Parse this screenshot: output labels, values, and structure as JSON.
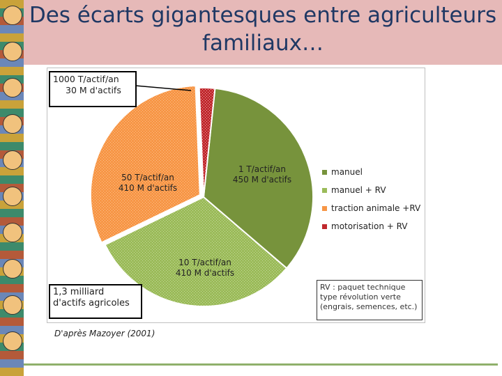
{
  "header": {
    "title": "Des écarts gigantesques entre agriculteurs familiaux…"
  },
  "chart_data": {
    "type": "pie",
    "title": "",
    "slices": [
      {
        "key": "manuel",
        "label": "manuel",
        "value": 450,
        "color": "#77933c"
      },
      {
        "key": "manuel_rv",
        "label": "manuel + RV",
        "value": 410,
        "color": "#9bbb59"
      },
      {
        "key": "traction",
        "label": "traction animale +RV",
        "value": 410,
        "color": "#f79646"
      },
      {
        "key": "motorisation",
        "label": "motorisation + RV",
        "value": 30,
        "color": "#c0282d"
      }
    ],
    "data_labels": {
      "manuel": [
        "1 T/actif/an",
        "450 M d'actifs"
      ],
      "manuel_rv": [
        "10 T/actif/an",
        "410 M d'actifs"
      ],
      "traction": [
        "50 T/actif/an",
        "410 M d'actifs"
      ],
      "motorisation": [
        "1000 T/actif/an",
        "30 M d'actifs"
      ]
    },
    "total_note": [
      "1,3 milliard",
      "d'actifs agricoles"
    ],
    "legend_position": "right",
    "rv_note": [
      "RV : paquet technique",
      "type révolution verte",
      "(engrais, semences, etc.)"
    ]
  },
  "source": "D'après Mazoyer (2001)"
}
